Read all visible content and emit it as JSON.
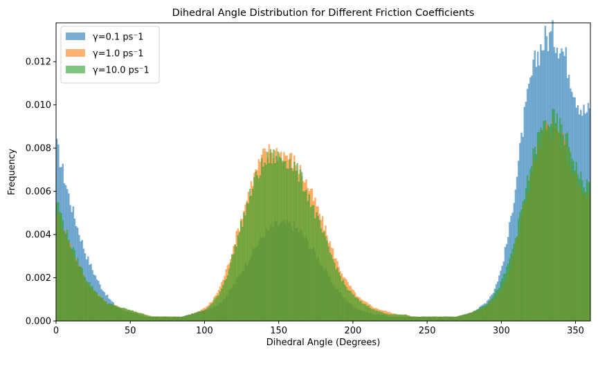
{
  "chart_data": {
    "type": "histogram",
    "title": "Dihedral Angle Distribution for Different Friction Coefficients",
    "xlabel": "Dihedral Angle (Degrees)",
    "ylabel": "Frequency",
    "xlim": [
      0,
      360
    ],
    "ylim": [
      0,
      0.0138
    ],
    "xticks": [
      "0",
      "50",
      "100",
      "150",
      "200",
      "250",
      "300",
      "350"
    ],
    "xtick_values": [
      0,
      50,
      100,
      150,
      200,
      250,
      300,
      350
    ],
    "yticks": [
      "0.000",
      "0.002",
      "0.004",
      "0.006",
      "0.008",
      "0.010",
      "0.012"
    ],
    "ytick_values": [
      0.0,
      0.002,
      0.004,
      0.006,
      0.008,
      0.01,
      0.012
    ],
    "grid": false,
    "legend_position": "top-left",
    "bin_edges_range": [
      0,
      360
    ],
    "series": [
      {
        "name": "γ=0.1 ps⁻1",
        "color": "#1f77b4",
        "alpha": 0.6,
        "x": [
          0,
          5,
          10,
          15,
          20,
          25,
          30,
          35,
          40,
          45,
          50,
          55,
          60,
          65,
          70,
          75,
          80,
          85,
          90,
          95,
          100,
          105,
          110,
          115,
          120,
          125,
          130,
          135,
          140,
          145,
          150,
          155,
          160,
          165,
          170,
          175,
          180,
          185,
          190,
          195,
          200,
          205,
          210,
          215,
          220,
          225,
          230,
          235,
          240,
          245,
          250,
          255,
          260,
          265,
          270,
          275,
          280,
          285,
          290,
          295,
          300,
          305,
          310,
          315,
          320,
          325,
          330,
          335,
          340,
          345,
          350,
          355,
          360
        ],
        "y": [
          0.0082,
          0.0068,
          0.0054,
          0.0042,
          0.0031,
          0.0023,
          0.0016,
          0.0011,
          0.0007,
          0.0005,
          0.0004,
          0.0003,
          0.0002,
          0.0002,
          0.0002,
          0.0002,
          0.0002,
          0.0002,
          0.0003,
          0.0004,
          0.0005,
          0.0006,
          0.0008,
          0.0012,
          0.0017,
          0.0023,
          0.0029,
          0.0035,
          0.004,
          0.0043,
          0.0045,
          0.0045,
          0.0044,
          0.0041,
          0.0036,
          0.0031,
          0.0025,
          0.0019,
          0.0014,
          0.001,
          0.0007,
          0.0005,
          0.0004,
          0.0003,
          0.0003,
          0.0002,
          0.0002,
          0.0002,
          0.0002,
          0.0002,
          0.0002,
          0.0002,
          0.0002,
          0.0002,
          0.0002,
          0.0003,
          0.0004,
          0.0006,
          0.0009,
          0.0014,
          0.0024,
          0.0041,
          0.0065,
          0.0092,
          0.0112,
          0.0125,
          0.0131,
          0.0132,
          0.0128,
          0.0118,
          0.0105,
          0.0097,
          0.0097
        ]
      },
      {
        "name": "γ=1.0 ps⁻1",
        "color": "#ff7f0e",
        "alpha": 0.6,
        "x": [
          0,
          5,
          10,
          15,
          20,
          25,
          30,
          35,
          40,
          45,
          50,
          55,
          60,
          65,
          70,
          75,
          80,
          85,
          90,
          95,
          100,
          105,
          110,
          115,
          120,
          125,
          130,
          135,
          140,
          145,
          150,
          155,
          160,
          165,
          170,
          175,
          180,
          185,
          190,
          195,
          200,
          205,
          210,
          215,
          220,
          225,
          230,
          235,
          240,
          245,
          250,
          255,
          260,
          265,
          270,
          275,
          280,
          285,
          290,
          295,
          300,
          305,
          310,
          315,
          320,
          325,
          330,
          335,
          340,
          345,
          350,
          355,
          360
        ],
        "y": [
          0.0052,
          0.0043,
          0.0034,
          0.0026,
          0.0019,
          0.0014,
          0.0011,
          0.0008,
          0.0007,
          0.0006,
          0.0005,
          0.0004,
          0.0003,
          0.0002,
          0.0002,
          0.0002,
          0.0002,
          0.0002,
          0.0003,
          0.0004,
          0.0006,
          0.0009,
          0.0015,
          0.0024,
          0.0036,
          0.0048,
          0.006,
          0.007,
          0.0077,
          0.0079,
          0.0078,
          0.0077,
          0.0074,
          0.0069,
          0.0062,
          0.0054,
          0.0045,
          0.0035,
          0.0026,
          0.0019,
          0.0014,
          0.001,
          0.0008,
          0.0006,
          0.0005,
          0.0004,
          0.0003,
          0.0003,
          0.0002,
          0.0002,
          0.0002,
          0.0002,
          0.0002,
          0.0002,
          0.0002,
          0.0003,
          0.0004,
          0.0005,
          0.0007,
          0.001,
          0.0015,
          0.0023,
          0.0036,
          0.0052,
          0.0068,
          0.0081,
          0.0088,
          0.0089,
          0.0085,
          0.0077,
          0.0066,
          0.0058,
          0.0058
        ]
      },
      {
        "name": "γ=10.0 ps⁻1",
        "color": "#2ca02c",
        "alpha": 0.6,
        "x": [
          0,
          5,
          10,
          15,
          20,
          25,
          30,
          35,
          40,
          45,
          50,
          55,
          60,
          65,
          70,
          75,
          80,
          85,
          90,
          95,
          100,
          105,
          110,
          115,
          120,
          125,
          130,
          135,
          140,
          145,
          150,
          155,
          160,
          165,
          170,
          175,
          180,
          185,
          190,
          195,
          200,
          205,
          210,
          215,
          220,
          225,
          230,
          235,
          240,
          245,
          250,
          255,
          260,
          265,
          270,
          275,
          280,
          285,
          290,
          295,
          300,
          305,
          310,
          315,
          320,
          325,
          330,
          335,
          340,
          345,
          350,
          355,
          360
        ],
        "y": [
          0.0057,
          0.0045,
          0.0035,
          0.0027,
          0.002,
          0.0015,
          0.0011,
          0.0008,
          0.0007,
          0.0006,
          0.0005,
          0.0004,
          0.0003,
          0.0002,
          0.0002,
          0.0002,
          0.0002,
          0.0002,
          0.0003,
          0.0004,
          0.0005,
          0.0008,
          0.0013,
          0.0021,
          0.0033,
          0.0045,
          0.0057,
          0.0067,
          0.0073,
          0.0076,
          0.0076,
          0.0075,
          0.0072,
          0.0066,
          0.0058,
          0.0049,
          0.004,
          0.0031,
          0.0023,
          0.0016,
          0.0012,
          0.0009,
          0.0007,
          0.0005,
          0.0004,
          0.0003,
          0.0003,
          0.0003,
          0.0002,
          0.0002,
          0.0002,
          0.0002,
          0.0002,
          0.0002,
          0.0002,
          0.0003,
          0.0004,
          0.0006,
          0.0008,
          0.0012,
          0.0018,
          0.0027,
          0.004,
          0.0056,
          0.0072,
          0.0085,
          0.0092,
          0.0093,
          0.0089,
          0.0082,
          0.0072,
          0.0063,
          0.0063
        ]
      }
    ]
  }
}
